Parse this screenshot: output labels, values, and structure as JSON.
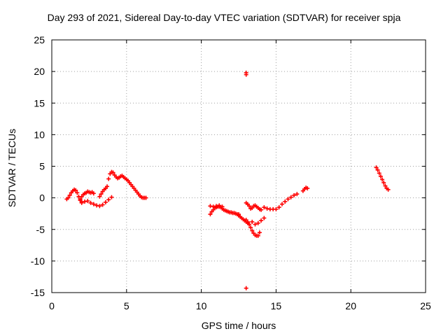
{
  "chart_data": {
    "type": "scatter",
    "title": "Day 293 of 2021, Sidereal Day-to-day VTEC variation (SDTVAR) for receiver spja",
    "xlabel": "GPS time / hours",
    "ylabel": "SDTVAR / TECUs",
    "xlim": [
      0,
      25
    ],
    "ylim": [
      -15,
      25
    ],
    "xticks": [
      0,
      5,
      10,
      15,
      20,
      25
    ],
    "yticks": [
      -15,
      -10,
      -5,
      0,
      5,
      10,
      15,
      20,
      25
    ],
    "grid": true,
    "marker": "+",
    "color": "#ff0000",
    "series": [
      {
        "name": "SDTVAR",
        "points": [
          [
            1.0,
            -0.2
          ],
          [
            1.1,
            0.0
          ],
          [
            1.2,
            0.4
          ],
          [
            1.3,
            0.8
          ],
          [
            1.4,
            1.1
          ],
          [
            1.5,
            1.3
          ],
          [
            1.6,
            1.2
          ],
          [
            1.7,
            0.8
          ],
          [
            1.8,
            0.2
          ],
          [
            1.9,
            -0.4
          ],
          [
            2.0,
            -0.6
          ],
          [
            1.9,
            -0.2
          ],
          [
            2.0,
            0.2
          ],
          [
            2.1,
            0.5
          ],
          [
            2.2,
            0.7
          ],
          [
            2.3,
            0.8
          ],
          [
            2.4,
            1.0
          ],
          [
            2.5,
            0.9
          ],
          [
            2.6,
            0.8
          ],
          [
            2.7,
            0.9
          ],
          [
            2.8,
            0.7
          ],
          [
            2.0,
            -0.8
          ],
          [
            2.2,
            -0.6
          ],
          [
            2.4,
            -0.5
          ],
          [
            2.6,
            -0.8
          ],
          [
            2.8,
            -1.0
          ],
          [
            3.0,
            -1.2
          ],
          [
            3.2,
            -1.3
          ],
          [
            3.4,
            -1.1
          ],
          [
            3.6,
            -0.7
          ],
          [
            3.8,
            -0.3
          ],
          [
            4.0,
            0.1
          ],
          [
            3.2,
            0.2
          ],
          [
            3.3,
            0.6
          ],
          [
            3.4,
            1.0
          ],
          [
            3.5,
            1.3
          ],
          [
            3.6,
            1.5
          ],
          [
            3.7,
            1.8
          ],
          [
            3.8,
            3.0
          ],
          [
            3.9,
            3.8
          ],
          [
            4.0,
            4.1
          ],
          [
            4.1,
            4.0
          ],
          [
            4.2,
            3.6
          ],
          [
            4.3,
            3.3
          ],
          [
            4.4,
            3.1
          ],
          [
            4.5,
            3.2
          ],
          [
            4.6,
            3.4
          ],
          [
            4.7,
            3.5
          ],
          [
            4.8,
            3.3
          ],
          [
            4.9,
            3.1
          ],
          [
            5.0,
            2.9
          ],
          [
            5.1,
            2.7
          ],
          [
            5.2,
            2.4
          ],
          [
            5.3,
            2.1
          ],
          [
            5.4,
            1.8
          ],
          [
            5.5,
            1.5
          ],
          [
            5.6,
            1.2
          ],
          [
            5.7,
            0.9
          ],
          [
            5.8,
            0.6
          ],
          [
            5.9,
            0.3
          ],
          [
            6.0,
            0.1
          ],
          [
            6.1,
            0.0
          ],
          [
            6.2,
            0.0
          ],
          [
            6.3,
            0.0
          ],
          [
            10.6,
            -2.6
          ],
          [
            10.7,
            -2.2
          ],
          [
            10.8,
            -1.9
          ],
          [
            10.9,
            -1.6
          ],
          [
            11.0,
            -1.5
          ],
          [
            11.1,
            -1.4
          ],
          [
            11.2,
            -1.4
          ],
          [
            11.3,
            -1.5
          ],
          [
            11.4,
            -1.7
          ],
          [
            11.5,
            -1.9
          ],
          [
            11.6,
            -2.0
          ],
          [
            11.7,
            -2.1
          ],
          [
            11.8,
            -2.2
          ],
          [
            11.9,
            -2.3
          ],
          [
            12.0,
            -2.3
          ],
          [
            12.1,
            -2.4
          ],
          [
            12.2,
            -2.4
          ],
          [
            12.3,
            -2.5
          ],
          [
            12.4,
            -2.6
          ],
          [
            12.5,
            -2.6
          ],
          [
            10.6,
            -1.3
          ],
          [
            10.8,
            -1.4
          ],
          [
            11.0,
            -1.3
          ],
          [
            11.2,
            -1.2
          ],
          [
            11.4,
            -1.4
          ],
          [
            12.5,
            -2.8
          ],
          [
            12.6,
            -3.0
          ],
          [
            12.7,
            -3.2
          ],
          [
            12.8,
            -3.4
          ],
          [
            12.9,
            -3.6
          ],
          [
            13.0,
            -3.8
          ],
          [
            13.1,
            -4.0
          ],
          [
            13.2,
            -4.2
          ],
          [
            13.0,
            -3.5
          ],
          [
            13.1,
            -3.8
          ],
          [
            13.2,
            -4.2
          ],
          [
            13.3,
            -4.7
          ],
          [
            13.4,
            -5.2
          ],
          [
            13.5,
            -5.6
          ],
          [
            13.6,
            -5.9
          ],
          [
            13.7,
            -6.0
          ],
          [
            13.8,
            -6.0
          ],
          [
            13.9,
            -5.5
          ],
          [
            13.4,
            -3.8
          ],
          [
            13.6,
            -4.2
          ],
          [
            13.8,
            -4.0
          ],
          [
            14.0,
            -3.6
          ],
          [
            14.2,
            -3.2
          ],
          [
            13.0,
            -0.8
          ],
          [
            13.1,
            -1.0
          ],
          [
            13.2,
            -1.3
          ],
          [
            13.3,
            -1.7
          ],
          [
            13.4,
            -1.6
          ],
          [
            13.5,
            -1.3
          ],
          [
            13.6,
            -1.2
          ],
          [
            13.7,
            -1.4
          ],
          [
            13.8,
            -1.6
          ],
          [
            13.9,
            -1.8
          ],
          [
            14.0,
            -1.9
          ],
          [
            14.2,
            -1.5
          ],
          [
            14.4,
            -1.7
          ],
          [
            14.6,
            -1.8
          ],
          [
            14.8,
            -1.8
          ],
          [
            15.0,
            -1.8
          ],
          [
            15.2,
            -1.5
          ],
          [
            15.4,
            -1.0
          ],
          [
            15.6,
            -0.6
          ],
          [
            15.8,
            -0.2
          ],
          [
            16.0,
            0.1
          ],
          [
            16.2,
            0.4
          ],
          [
            16.4,
            0.6
          ],
          [
            16.8,
            1.1
          ],
          [
            16.9,
            1.4
          ],
          [
            17.0,
            1.6
          ],
          [
            17.1,
            1.5
          ],
          [
            13.0,
            19.8
          ],
          [
            13.0,
            19.5
          ],
          [
            13.0,
            -14.3
          ],
          [
            21.7,
            4.8
          ],
          [
            21.8,
            4.4
          ],
          [
            21.9,
            3.9
          ],
          [
            22.0,
            3.4
          ],
          [
            22.1,
            2.9
          ],
          [
            22.2,
            2.4
          ],
          [
            22.3,
            1.9
          ],
          [
            22.4,
            1.5
          ],
          [
            22.5,
            1.3
          ]
        ]
      }
    ]
  }
}
